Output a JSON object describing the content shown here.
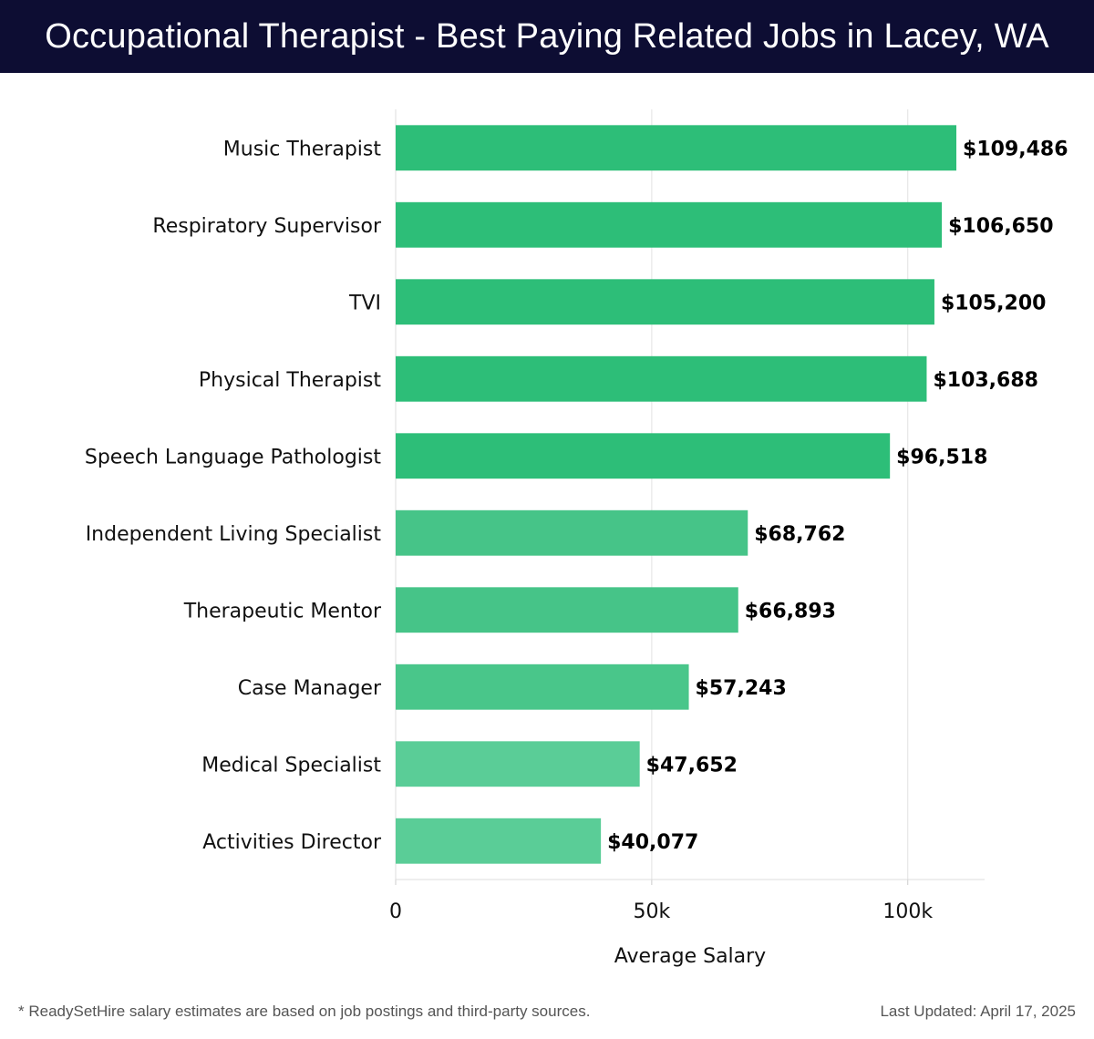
{
  "header": {
    "title": "Occupational Therapist - Best Paying Related Jobs in Lacey, WA"
  },
  "chart_data": {
    "type": "bar",
    "orientation": "horizontal",
    "categories": [
      "Music Therapist",
      "Respiratory Supervisor",
      "TVI",
      "Physical Therapist",
      "Speech Language Pathologist",
      "Independent Living Specialist",
      "Therapeutic Mentor",
      "Case Manager",
      "Medical Specialist",
      "Activities Director"
    ],
    "values": [
      109486,
      106650,
      105200,
      103688,
      96518,
      68762,
      66893,
      57243,
      47652,
      40077
    ],
    "data_labels": [
      "$109,486",
      "$106,650",
      "$105,200",
      "$103,688",
      "$96,518",
      "$68,762",
      "$66,893",
      "$57,243",
      "$47,652",
      "$40,077"
    ],
    "xlabel": "Average Salary",
    "ylabel": "",
    "xlim": [
      0,
      115000
    ],
    "xticks": [
      0,
      50000,
      100000
    ],
    "xtick_labels": [
      "0",
      "50k",
      "100k"
    ],
    "grid": "vertical",
    "colors": {
      "high": "#2dbe78",
      "mid": "#49c68a",
      "low": "#5acd97"
    }
  },
  "footer": {
    "note": "* ReadySetHire salary estimates are based on job postings and third-party sources.",
    "updated": "Last Updated: April 17, 2025"
  }
}
